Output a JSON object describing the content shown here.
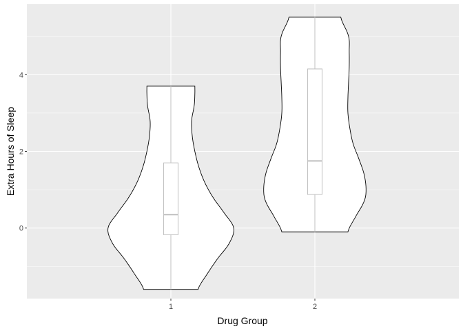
{
  "chart_data": {
    "type": "violin",
    "xlabel": "Drug Group",
    "ylabel": "Extra Hours of Sleep",
    "categories": [
      "1",
      "2"
    ],
    "yticks": [
      0,
      2,
      4
    ],
    "ylim": [
      -1.84,
      5.84
    ],
    "grid": true,
    "colors": {
      "panel": "#ebebeb",
      "grid_major": "#ffffff",
      "violin_fill": "#ffffff",
      "violin_stroke": "#000000",
      "box_stroke": "#bfbfbf"
    },
    "groups": [
      {
        "category": "1",
        "min": -1.6,
        "max": 3.7,
        "box": {
          "q1": -0.175,
          "median": 0.35,
          "q3": 1.7
        },
        "density_profile": [
          [
            -1.6,
            0.42
          ],
          [
            -1.2,
            0.56
          ],
          [
            -0.8,
            0.72
          ],
          [
            -0.4,
            0.9
          ],
          [
            0.0,
            0.97
          ],
          [
            0.4,
            0.82
          ],
          [
            0.8,
            0.65
          ],
          [
            1.2,
            0.52
          ],
          [
            1.6,
            0.43
          ],
          [
            2.0,
            0.37
          ],
          [
            2.4,
            0.33
          ],
          [
            2.8,
            0.32
          ],
          [
            3.2,
            0.36
          ],
          [
            3.5,
            0.37
          ],
          [
            3.7,
            0.37
          ]
        ]
      },
      {
        "category": "2",
        "min": -0.1,
        "max": 5.5,
        "box": {
          "q1": 0.875,
          "median": 1.75,
          "q3": 4.15
        },
        "density_profile": [
          [
            -0.1,
            0.51
          ],
          [
            0.3,
            0.63
          ],
          [
            0.7,
            0.76
          ],
          [
            1.0,
            0.79
          ],
          [
            1.4,
            0.76
          ],
          [
            1.8,
            0.68
          ],
          [
            2.2,
            0.59
          ],
          [
            2.6,
            0.54
          ],
          [
            3.0,
            0.51
          ],
          [
            3.4,
            0.51
          ],
          [
            3.8,
            0.52
          ],
          [
            4.2,
            0.53
          ],
          [
            4.6,
            0.53
          ],
          [
            5.0,
            0.52
          ],
          [
            5.5,
            0.4
          ]
        ]
      }
    ]
  }
}
